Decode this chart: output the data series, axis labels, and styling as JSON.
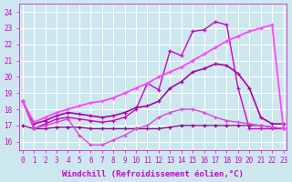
{
  "background_color": "#cce8ee",
  "grid_color": "#aacccc",
  "xlabel": "Windchill (Refroidissement éolien,°C)",
  "xlim": [
    -0.3,
    23.3
  ],
  "ylim": [
    15.5,
    24.5
  ],
  "yticks": [
    16,
    17,
    18,
    19,
    20,
    21,
    22,
    23,
    24
  ],
  "xticks": [
    0,
    1,
    2,
    3,
    4,
    5,
    6,
    7,
    8,
    9,
    10,
    11,
    12,
    13,
    14,
    15,
    16,
    17,
    18,
    19,
    20,
    21,
    22,
    23
  ],
  "lines": [
    {
      "x": [
        0,
        1,
        2,
        3,
        4,
        5,
        6,
        7,
        8,
        9,
        10,
        11,
        12,
        13,
        14,
        15,
        16,
        17,
        18,
        19,
        20,
        21,
        22,
        23
      ],
      "y": [
        18.5,
        16.8,
        17.1,
        17.4,
        17.5,
        17.4,
        17.3,
        17.2,
        17.3,
        17.5,
        18.0,
        19.6,
        19.2,
        21.6,
        21.3,
        22.8,
        22.9,
        23.4,
        23.2,
        19.3,
        16.8,
        16.8,
        16.8,
        16.8
      ],
      "color": "#cc00cc",
      "lw": 1.0
    },
    {
      "x": [
        0,
        1,
        2,
        3,
        4,
        5,
        6,
        7,
        8,
        9,
        10,
        11,
        12,
        13,
        14,
        15,
        16,
        17,
        18,
        19,
        20,
        21,
        22,
        23
      ],
      "y": [
        18.5,
        17.1,
        17.3,
        17.6,
        17.8,
        17.7,
        17.6,
        17.5,
        17.6,
        17.8,
        18.1,
        18.2,
        18.5,
        19.3,
        19.7,
        20.3,
        20.5,
        20.8,
        20.7,
        20.2,
        19.3,
        17.5,
        17.1,
        17.1
      ],
      "color": "#aa00aa",
      "lw": 1.2
    },
    {
      "x": [
        0,
        1,
        2,
        3,
        4,
        5,
        6,
        7,
        8,
        9,
        10,
        11,
        12,
        13,
        14,
        15,
        16,
        17,
        18,
        19,
        20,
        21,
        22,
        23
      ],
      "y": [
        17.0,
        16.8,
        16.8,
        16.9,
        16.9,
        16.9,
        16.8,
        16.8,
        16.8,
        16.8,
        16.8,
        16.8,
        16.8,
        16.9,
        17.0,
        17.0,
        17.0,
        17.0,
        17.0,
        17.0,
        17.0,
        17.0,
        16.9,
        16.8
      ],
      "color": "#880088",
      "lw": 0.9
    },
    {
      "x": [
        0,
        1,
        2,
        3,
        4,
        5,
        6,
        7,
        8,
        9,
        10,
        11,
        12,
        13,
        14,
        15,
        16,
        17,
        18,
        19,
        20,
        21,
        22,
        23
      ],
      "y": [
        18.5,
        16.8,
        17.0,
        17.2,
        17.4,
        16.4,
        15.8,
        15.8,
        16.1,
        16.4,
        16.8,
        17.0,
        17.5,
        17.8,
        18.0,
        18.0,
        17.8,
        17.5,
        17.3,
        17.2,
        17.1,
        17.0,
        16.9,
        16.8
      ],
      "color": "#dd44dd",
      "lw": 1.0
    },
    {
      "x": [
        0,
        1,
        2,
        3,
        4,
        5,
        6,
        7,
        8,
        9,
        10,
        11,
        12,
        13,
        14,
        15,
        16,
        17,
        18,
        19,
        20,
        21,
        22,
        23
      ],
      "y": [
        18.5,
        17.2,
        17.5,
        17.8,
        18.0,
        18.2,
        18.4,
        18.5,
        18.7,
        19.0,
        19.3,
        19.6,
        20.0,
        20.3,
        20.6,
        21.0,
        21.4,
        21.8,
        22.2,
        22.5,
        22.8,
        23.0,
        23.2,
        16.8
      ],
      "color": "#ff44ff",
      "lw": 1.3
    }
  ],
  "tick_color": "#cc00cc",
  "tick_fontsize": 5.5,
  "xlabel_fontsize": 6.5
}
